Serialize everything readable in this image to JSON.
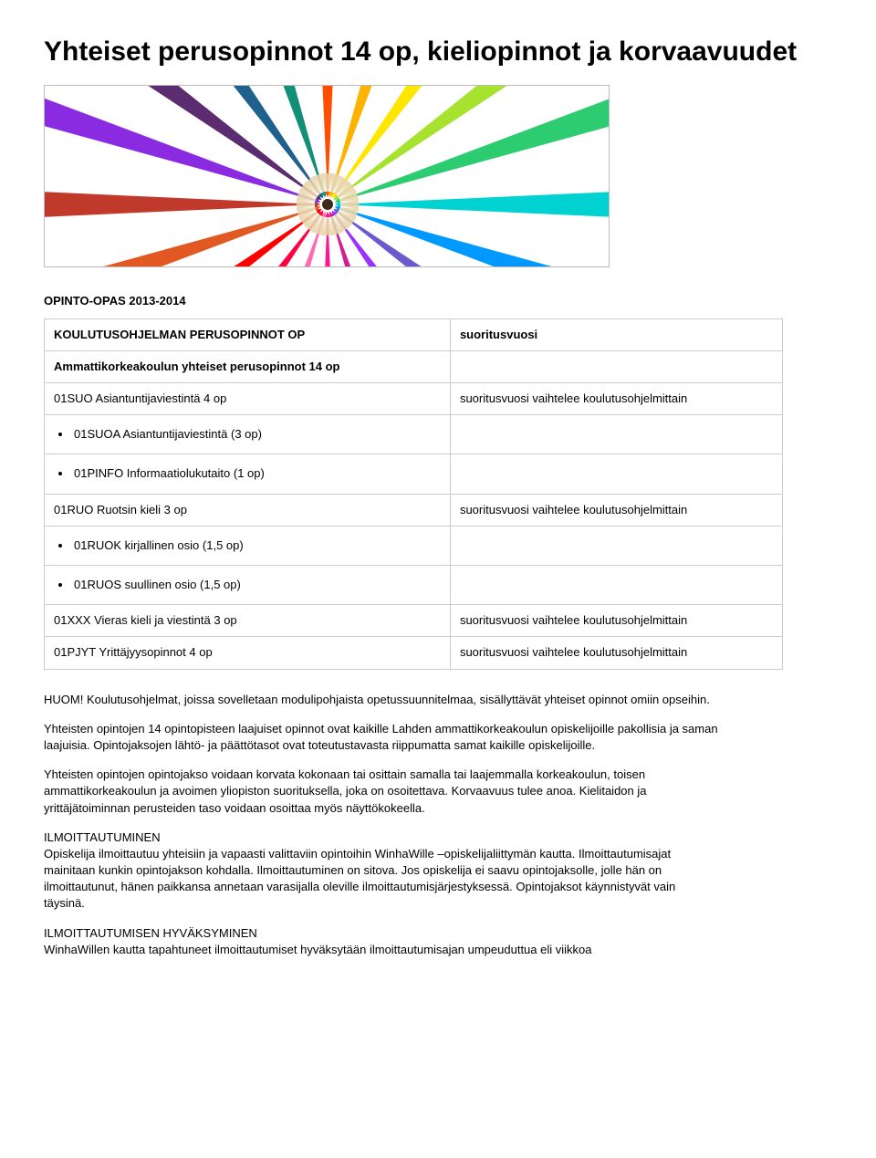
{
  "title": "Yhteiset perusopinnot 14 op, kieliopinnot ja korvaavuudet",
  "hero": {
    "pencil_colors": [
      "#ff4f00",
      "#ffb300",
      "#ffe600",
      "#a6e22e",
      "#2ecc71",
      "#00d2d2",
      "#0099ff",
      "#6a5acd",
      "#9b30ff",
      "#d02090",
      "#ff1493",
      "#ff69b4",
      "#ff0040",
      "#ff0000",
      "#e25822",
      "#c0392b",
      "#8a2be2",
      "#5b2c6f",
      "#1f618d",
      "#148f77"
    ],
    "background": "#ffffff",
    "center_tip": "#3a2a1a"
  },
  "guide_heading": "OPINTO-OPAS 2013-2014",
  "table": {
    "header": {
      "left": "KOULUTUSOHJELMAN PERUSOPINNOT OP",
      "right": "suoritusvuosi"
    },
    "rows": [
      {
        "left_bold": true,
        "left": "Ammattikorkeakoulun yhteiset perusopinnot 14 op",
        "right": ""
      },
      {
        "left": "01SUO Asiantuntijaviestintä 4 op",
        "right": "suoritusvuosi vaihtelee koulutusohjelmittain"
      },
      {
        "bullet": true,
        "left": "01SUOA Asiantuntijaviestintä (3 op)",
        "right": ""
      },
      {
        "bullet": true,
        "left": "01PINFO Informaatiolukutaito (1 op)",
        "right": ""
      },
      {
        "left": "01RUO Ruotsin kieli 3 op",
        "right": "suoritusvuosi vaihtelee koulutusohjelmittain"
      },
      {
        "bullet": true,
        "left": "01RUOK kirjallinen osio (1,5 op)",
        "right": ""
      },
      {
        "bullet": true,
        "left": "01RUOS suullinen osio (1,5 op)",
        "right": ""
      },
      {
        "left": "01XXX Vieras kieli ja viestintä 3 op",
        "right": "suoritusvuosi vaihtelee koulutusohjelmittain"
      },
      {
        "left": "01PJYT Yrittäjyysopinnot 4 op",
        "right": "suoritusvuosi vaihtelee koulutusohjelmittain"
      }
    ]
  },
  "paras": {
    "p1": "HUOM! Koulutusohjelmat, joissa sovelletaan modulipohjaista opetussuunnitelmaa, sisällyttävät yhteiset opinnot omiin opseihin.",
    "p2": "Yhteisten opintojen 14 opintopisteen laajuiset opinnot ovat kaikille Lahden ammattikorkeakoulun opiskelijoille pakollisia ja saman laajuisia. Opintojaksojen lähtö- ja päättötasot ovat toteutustavasta riippumatta samat kaikille opiskelijoille.",
    "p3": "Yhteisten opintojen opintojakso voidaan korvata kokonaan tai osittain samalla tai laajemmalla korkeakoulun, toisen ammattikorkeakoulun ja avoimen yliopiston suorituksella, joka on osoitettava. Korvaavuus tulee anoa. Kielitaidon ja yrittäjätoiminnan perusteiden taso voidaan osoittaa myös näyttökokeella.",
    "h1": "ILMOITTAUTUMINEN",
    "p4": "Opiskelija ilmoittautuu yhteisiin ja vapaasti valittaviin opintoihin WinhaWille –opiskelijaliittymän kautta. Ilmoittautumisajat mainitaan kunkin opintojakson kohdalla. Ilmoittautuminen on sitova. Jos opiskelija ei saavu opintojaksolle, jolle hän on ilmoittautunut, hänen paikkansa annetaan varasijalla oleville ilmoittautumisjärjestyksessä. Opintojaksot käynnistyvät vain täysinä.",
    "h2": "ILMOITTAUTUMISEN HYVÄKSYMINEN",
    "p5": "WinhaWillen kautta tapahtuneet ilmoittautumiset hyväksytään ilmoittautumisajan umpeuduttua eli viikkoa"
  }
}
